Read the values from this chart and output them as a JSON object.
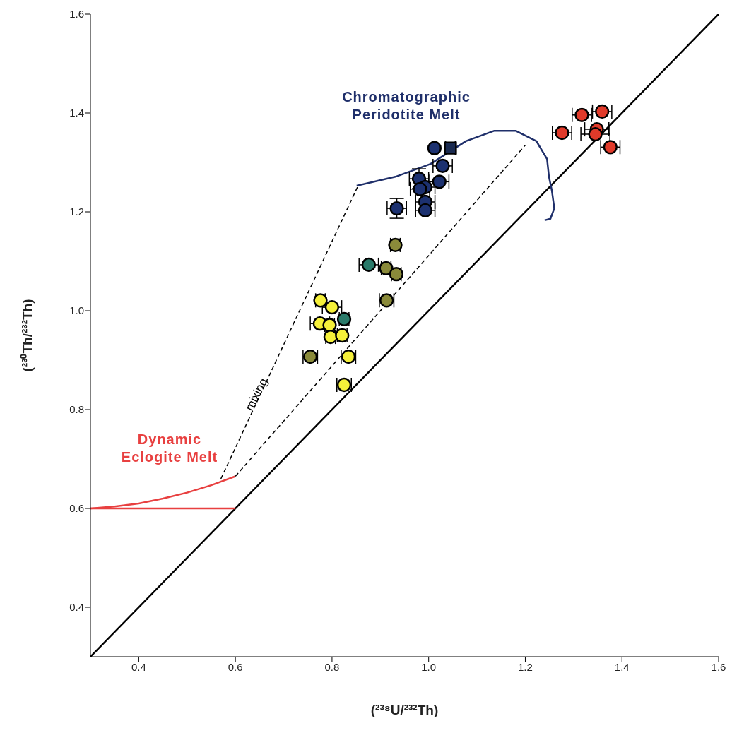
{
  "chart_data": {
    "type": "scatter",
    "xlabel": "(²³⁸U/²³²Th)",
    "ylabel": "(²³⁰Th/²³²Th)",
    "xlim": [
      0.3,
      1.6
    ],
    "ylim": [
      0.3,
      1.6
    ],
    "xticks": [
      {
        "value": 0.4,
        "label": "0.4"
      },
      {
        "value": 0.6,
        "label": "0.6"
      },
      {
        "value": 0.8,
        "label": "0.8"
      },
      {
        "value": 1.0,
        "label": "1.0"
      },
      {
        "value": 1.2,
        "label": "1.2"
      },
      {
        "value": 1.4,
        "label": "1.4"
      },
      {
        "value": 1.6,
        "label": "1.6"
      }
    ],
    "yticks": [
      {
        "value": 0.4,
        "label": "0.4"
      },
      {
        "value": 0.6,
        "label": "0.6"
      },
      {
        "value": 0.8,
        "label": "0.8"
      },
      {
        "value": 1.0,
        "label": "1.0"
      },
      {
        "value": 1.2,
        "label": "1.2"
      },
      {
        "value": 1.4,
        "label": "1.4"
      },
      {
        "value": 1.6,
        "label": "1.6"
      }
    ],
    "grid": false,
    "series": [
      {
        "type": "line",
        "color": "#000000",
        "line_style": "solid",
        "x": [
          0.3,
          1.6
        ],
        "values": [
          0.3,
          1.6
        ]
      },
      {
        "type": "line",
        "name": "mixing",
        "color": "#000000",
        "line_style": "dashed",
        "x": [
          0.57,
          0.855
        ],
        "values": [
          0.66,
          1.255
        ]
      },
      {
        "type": "line",
        "color": "#000000",
        "line_style": "dashed",
        "x": [
          0.6,
          1.2
        ],
        "values": [
          0.665,
          1.335
        ]
      },
      {
        "type": "line",
        "name": "Dynamic Eclogite Melt",
        "color": "#e84040",
        "line_style": "solid",
        "x": [
          0.3,
          0.35,
          0.4,
          0.45,
          0.5,
          0.55,
          0.6
        ],
        "values": [
          0.6,
          0.604,
          0.61,
          0.62,
          0.632,
          0.647,
          0.665
        ]
      },
      {
        "type": "line",
        "color": "#e84040",
        "line_style": "solid",
        "x": [
          0.3,
          0.6
        ],
        "values": [
          0.6,
          0.6
        ]
      },
      {
        "type": "line",
        "name": "Chromatographic Peridotite Melt",
        "color": "#1f2f6a",
        "line_style": "solid",
        "x": [
          0.851,
          0.931,
          1.004,
          1.077,
          1.136,
          1.18,
          1.223,
          1.245,
          1.249,
          1.255,
          1.26,
          1.252,
          1.24
        ],
        "values": [
          1.253,
          1.271,
          1.297,
          1.343,
          1.364,
          1.364,
          1.343,
          1.307,
          1.271,
          1.243,
          1.207,
          1.186,
          1.183
        ]
      },
      {
        "marker": "circle",
        "color": "#1c3170",
        "x": [
          1.012,
          1.029,
          0.98,
          1.022,
          0.993,
          0.982,
          0.993,
          0.993,
          0.934
        ],
        "values": [
          1.329,
          1.293,
          1.267,
          1.261,
          1.25,
          1.246,
          1.22,
          1.203,
          1.207
        ],
        "xerrors": [
          null,
          0.02,
          0.02,
          0.02,
          0.02,
          0.02,
          0.02,
          0.02,
          0.02
        ],
        "errors": [
          null,
          null,
          0.02,
          null,
          null,
          null,
          null,
          null,
          0.02
        ]
      },
      {
        "marker": "square",
        "color": "#1a2a50",
        "x": [
          1.045
        ],
        "values": [
          1.329
        ],
        "xerrors": [
          0.01
        ]
      },
      {
        "marker": "circle",
        "color": "#8a8a3a",
        "x": [
          0.931,
          0.912,
          0.933,
          0.913,
          0.755
        ],
        "values": [
          1.133,
          1.086,
          1.074,
          1.021,
          0.907
        ],
        "xerrors": [
          0.01,
          0.01,
          0.01,
          0.015,
          0.015
        ]
      },
      {
        "marker": "circle",
        "color": "#2a7a6a",
        "x": [
          0.876,
          0.825
        ],
        "values": [
          1.093,
          0.983
        ],
        "xerrors": [
          0.02,
          0.01
        ]
      },
      {
        "marker": "circle",
        "color": "#f5f03a",
        "x": [
          0.776,
          0.8,
          0.775,
          0.795,
          0.797,
          0.821,
          0.834,
          0.825
        ],
        "values": [
          1.021,
          1.007,
          0.974,
          0.971,
          0.947,
          0.95,
          0.907,
          0.85
        ],
        "xerrors": [
          0.01,
          0.02,
          0.02,
          0.01,
          0.01,
          0.01,
          0.015,
          0.015
        ]
      },
      {
        "marker": "circle",
        "color": "#e03a2a",
        "x": [
          1.317,
          1.359,
          1.276,
          1.348,
          1.345,
          1.376
        ],
        "values": [
          1.396,
          1.403,
          1.36,
          1.367,
          1.357,
          1.331
        ],
        "xerrors": [
          0.02,
          0.02,
          0.02,
          0.025,
          0.03,
          0.02
        ]
      }
    ]
  }
}
